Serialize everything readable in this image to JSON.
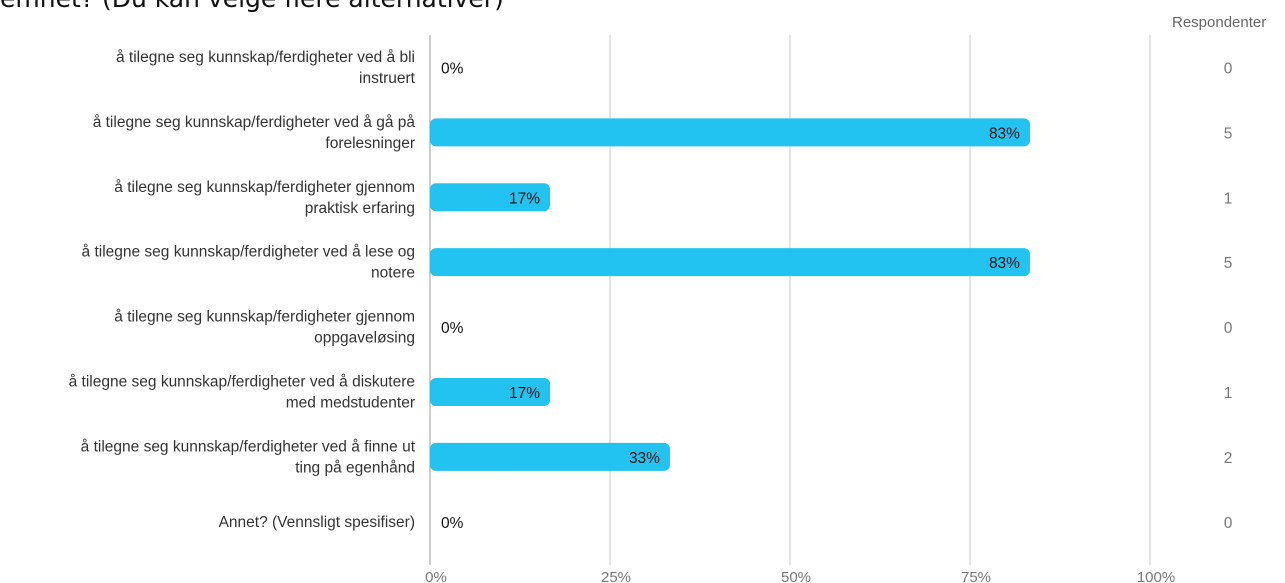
{
  "title": "emnet? (Du kan velge flere alternativer)",
  "respondents_header": "Respondenter",
  "colors": {
    "bar": "#22c3f1",
    "grid": "#c8c8c8",
    "axis": "#9a9a9a",
    "text": "#333333",
    "muted": "#777777"
  },
  "chart_data": {
    "type": "bar",
    "orientation": "horizontal",
    "categories": [
      [
        "å tilegne seg kunnskap/ferdigheter ved å bli",
        "instruert"
      ],
      [
        "å tilegne seg kunnskap/ferdigheter ved å gå på",
        "forelesninger"
      ],
      [
        "å tilegne seg kunnskap/ferdigheter gjennom",
        "praktisk erfaring"
      ],
      [
        "å tilegne seg kunnskap/ferdigheter ved å lese og",
        "notere"
      ],
      [
        "å tilegne seg kunnskap/ferdigheter gjennom",
        "oppgaveløsing"
      ],
      [
        "å tilegne seg kunnskap/ferdigheter ved å diskutere",
        "med medstudenter"
      ],
      [
        "å tilegne seg kunnskap/ferdigheter ved å finne ut",
        "ting på egenhånd"
      ],
      [
        "Annet? (Vennsligt spesifiser)"
      ]
    ],
    "values": [
      0,
      83.33,
      16.67,
      83.33,
      0,
      16.67,
      33.33,
      0
    ],
    "value_labels": [
      "0%",
      "83%",
      "17%",
      "83%",
      "0%",
      "17%",
      "33%",
      "0%"
    ],
    "respondents": [
      "0",
      "5",
      "1",
      "5",
      "0",
      "1",
      "2",
      "0"
    ],
    "xlim": [
      0,
      100
    ],
    "x_ticks": [
      0,
      25,
      50,
      75,
      100
    ],
    "x_tick_labels": [
      "0%",
      "25%",
      "50%",
      "75%",
      "100%"
    ],
    "grid": true
  }
}
